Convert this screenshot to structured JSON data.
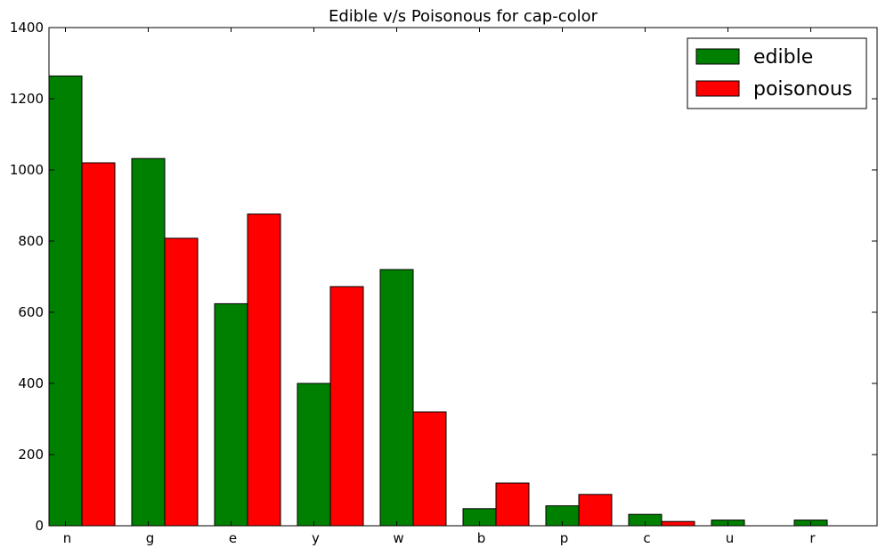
{
  "chart_data": {
    "type": "bar",
    "title": "Edible v/s Poisonous for cap-color",
    "xlabel": "",
    "ylabel": "",
    "categories": [
      "n",
      "g",
      "e",
      "y",
      "w",
      "b",
      "p",
      "c",
      "u",
      "r"
    ],
    "series": [
      {
        "name": "edible",
        "color": "#008000",
        "values": [
          1264,
          1032,
          624,
          400,
          720,
          48,
          56,
          32,
          16,
          16
        ]
      },
      {
        "name": "poisonous",
        "color": "#ff0000",
        "values": [
          1020,
          808,
          876,
          672,
          320,
          120,
          88,
          12,
          0,
          0
        ]
      }
    ],
    "ylim": [
      0,
      1400
    ],
    "yticks": [
      0,
      200,
      400,
      600,
      800,
      1000,
      1200,
      1400
    ],
    "grid": false,
    "legend_position": "top-right"
  }
}
